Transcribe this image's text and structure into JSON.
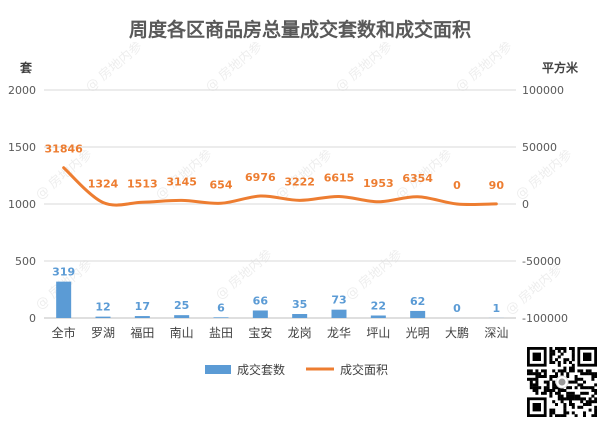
{
  "chart_data": {
    "type": "bar+line",
    "title": "周度各区商品房总量成交套数和成交面积",
    "left_axis_unit": "套",
    "right_axis_unit": "平方米",
    "left_ylim": [
      0,
      2000
    ],
    "left_ticks": [
      "0",
      "500",
      "1000",
      "1500",
      "2000"
    ],
    "right_ylim": [
      -100000,
      100000
    ],
    "right_ticks": [
      "-100000",
      "-50000",
      "0",
      "50000",
      "100000"
    ],
    "categories": [
      "全市",
      "罗湖",
      "福田",
      "南山",
      "盐田",
      "宝安",
      "龙岗",
      "龙华",
      "坪山",
      "光明",
      "大鹏",
      "深汕"
    ],
    "series": [
      {
        "name": "成交套数",
        "kind": "bar",
        "axis": "left",
        "values": [
          319,
          12,
          17,
          25,
          6,
          66,
          35,
          73,
          22,
          62,
          0,
          1
        ],
        "color": "#5b9bd5"
      },
      {
        "name": "成交面积",
        "kind": "line",
        "axis": "right",
        "values": [
          31846,
          1324,
          1513,
          3145,
          654,
          6976,
          3222,
          6615,
          1953,
          6354,
          0,
          90
        ],
        "color": "#ed7d31"
      }
    ],
    "grid": true,
    "legend_position": "bottom"
  },
  "watermark": "@ 房地内参",
  "qr_code": "qr-code"
}
